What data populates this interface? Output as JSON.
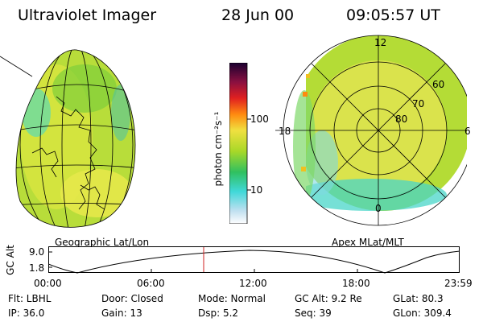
{
  "header": {
    "instrument": "Ultraviolet Imager",
    "date": "28 Jun 00",
    "time": "09:05:57 UT"
  },
  "left_panel": {
    "caption": "Geographic Lat/Lon"
  },
  "right_panel": {
    "caption": "Apex MLat/MLT",
    "mlt_labels": [
      "12",
      "18",
      "6",
      "0"
    ],
    "lat_labels": [
      "60",
      "70",
      "80"
    ]
  },
  "colorbar": {
    "unit_label": "photon cm⁻²s⁻¹",
    "tick_labels": [
      "100",
      "10"
    ]
  },
  "altitude_plot": {
    "ylabel": "GC Alt",
    "y_ticks": [
      "9.0",
      "1.8"
    ],
    "x_ticks": [
      "00:00",
      "06:00",
      "12:00",
      "18:00",
      "23:59"
    ],
    "current_time_marker": "09:05:57"
  },
  "info": {
    "filter": "Flt: LBHL",
    "door": "Door: Closed",
    "mode": "Mode: Normal",
    "gc_alt": "GC Alt: 9.2 Re",
    "glat": "GLat:  80.3",
    "ip": "IP: 36.0",
    "gain": "Gain: 13",
    "dsp": "Dsp:      5.2",
    "seq": "Seq: 39",
    "glon": "GLon: 309.4"
  },
  "colors": {
    "aurora_green": "#9acd32",
    "aurora_yellow": "#e8e85a",
    "aurora_cyan": "#40e0d0",
    "marker_red": "#d02020"
  }
}
